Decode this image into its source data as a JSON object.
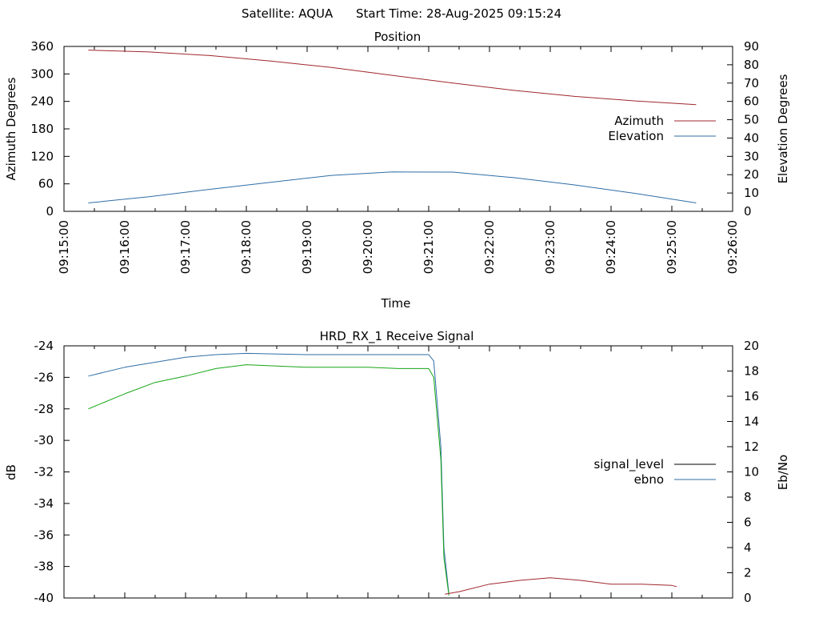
{
  "header": {
    "satellite": "Satellite: AQUA",
    "start_time": "Start Time: 28-Aug-2025 09:15:24"
  },
  "chart_data": [
    {
      "type": "line",
      "title": "Position",
      "xlabel": "Time",
      "ylabel": "Azimuth Degrees",
      "y2label": "Elevation Degrees",
      "x_ticks": [
        "09:15:00",
        "09:16:00",
        "09:17:00",
        "09:18:00",
        "09:19:00",
        "09:20:00",
        "09:21:00",
        "09:22:00",
        "09:23:00",
        "09:24:00",
        "09:25:00",
        "09:26:00"
      ],
      "xlim": [
        "09:15:00",
        "09:26:00"
      ],
      "ylim": [
        0,
        360
      ],
      "y_ticks": [
        "0",
        "60",
        "120",
        "180",
        "240",
        "300",
        "360"
      ],
      "y2lim": [
        0,
        90
      ],
      "y2_ticks": [
        "0",
        "10",
        "20",
        "30",
        "40",
        "50",
        "60",
        "70",
        "80",
        "90"
      ],
      "legend_position": "right",
      "series": [
        {
          "name": "Azimuth",
          "axis": "y",
          "color": "#a0272d",
          "x": [
            "09:15:24",
            "09:16:24",
            "09:17:24",
            "09:18:24",
            "09:19:24",
            "09:20:24",
            "09:21:24",
            "09:22:24",
            "09:23:24",
            "09:24:24",
            "09:25:24"
          ],
          "values": [
            352,
            348,
            340,
            328,
            314,
            297,
            280,
            264,
            251,
            241,
            233
          ]
        },
        {
          "name": "Elevation",
          "axis": "y2",
          "color": "#2e6ea6",
          "x": [
            "09:15:24",
            "09:16:24",
            "09:17:24",
            "09:18:24",
            "09:19:24",
            "09:20:24",
            "09:21:24",
            "09:22:24",
            "09:23:24",
            "09:24:24",
            "09:25:24"
          ],
          "values": [
            4.6,
            8,
            12,
            15.8,
            19.6,
            21.5,
            21.4,
            18.4,
            14.4,
            9.8,
            4.6
          ]
        }
      ]
    },
    {
      "type": "line",
      "title": "HRD_RX_1 Receive Signal",
      "xlabel": "",
      "ylabel": "dB",
      "y2label": "Eb/No",
      "xlim": [
        "09:15:00",
        "09:26:00"
      ],
      "ylim": [
        -40,
        -24
      ],
      "y_ticks": [
        "-24",
        "-26",
        "-28",
        "-30",
        "-32",
        "-34",
        "-36",
        "-38",
        "-40"
      ],
      "y2lim": [
        0,
        20
      ],
      "y2_ticks": [
        "0",
        "2",
        "4",
        "6",
        "8",
        "10",
        "12",
        "14",
        "16",
        "18",
        "20"
      ],
      "legend_position": "right",
      "grid": false,
      "series": [
        {
          "name": "signal_level",
          "axis": "y",
          "color": "#000000",
          "values": []
        },
        {
          "name": "ebno",
          "axis": "y2",
          "color": "#2e6ea6",
          "x": [
            "09:15:24",
            "09:16:00",
            "09:16:30",
            "09:17:00",
            "09:17:30",
            "09:18:00",
            "09:19:00",
            "09:20:00",
            "09:20:30",
            "09:21:00",
            "09:21:05",
            "09:21:12",
            "09:21:15",
            "09:21:20"
          ],
          "values": [
            17.6,
            18.3,
            18.7,
            19.1,
            19.3,
            19.4,
            19.3,
            19.3,
            19.3,
            19.3,
            18.8,
            12,
            4,
            0.3
          ]
        },
        {
          "name": "",
          "axis": "y2",
          "color": "#16a516",
          "x": [
            "09:15:24",
            "09:16:00",
            "09:16:30",
            "09:17:00",
            "09:17:30",
            "09:18:00",
            "09:19:00",
            "09:20:00",
            "09:20:30",
            "09:21:00",
            "09:21:05",
            "09:21:12",
            "09:21:15",
            "09:21:20"
          ],
          "values": [
            15,
            16.2,
            17.1,
            17.6,
            18.2,
            18.5,
            18.3,
            18.3,
            18.2,
            18.2,
            17.5,
            11,
            3.2,
            0.2
          ]
        },
        {
          "name": "",
          "axis": "y2",
          "color": "#a0272d",
          "x": [
            "09:21:16",
            "09:21:30",
            "09:22:00",
            "09:22:30",
            "09:23:00",
            "09:23:30",
            "09:24:00",
            "09:24:30",
            "09:25:00",
            "09:25:05"
          ],
          "values": [
            0.3,
            0.5,
            1.1,
            1.4,
            1.6,
            1.4,
            1.1,
            1.1,
            1.0,
            0.9
          ]
        }
      ]
    }
  ]
}
